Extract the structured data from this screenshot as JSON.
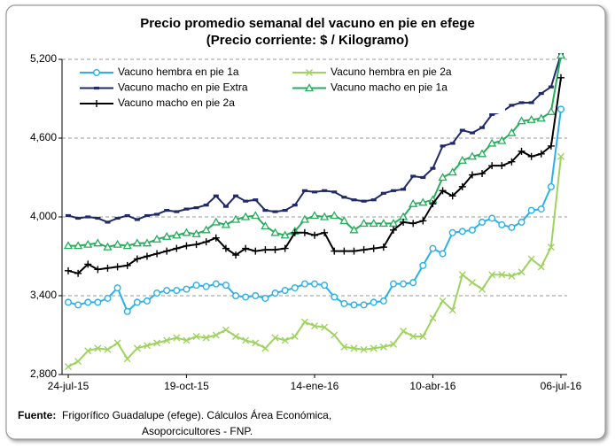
{
  "chart_data": {
    "type": "line",
    "title": "Precio promedio semanal del vacuno en pie en efege",
    "subtitle": "(Precio corriente: $ / Kilogramo)",
    "categories": [
      "24-jul-15",
      null,
      null,
      null,
      null,
      null,
      null,
      null,
      null,
      null,
      null,
      null,
      "19-oct-15",
      null,
      null,
      null,
      null,
      null,
      null,
      null,
      null,
      null,
      null,
      null,
      null,
      "14-ene-16",
      null,
      null,
      null,
      null,
      null,
      null,
      null,
      null,
      null,
      null,
      null,
      "10-abr-16",
      null,
      null,
      null,
      null,
      null,
      null,
      null,
      null,
      null,
      null,
      null,
      null,
      "06-jul-16"
    ],
    "series": [
      {
        "name": "Vacuno hembra en pie 1a",
        "color": "#2bb0e8",
        "marker": "circle",
        "values": [
          3350,
          3330,
          3350,
          3350,
          3380,
          3460,
          3280,
          3350,
          3360,
          3420,
          3440,
          3440,
          3450,
          3480,
          3470,
          3490,
          3480,
          3400,
          3390,
          3400,
          3380,
          3420,
          3440,
          3460,
          3490,
          3490,
          3480,
          3390,
          3340,
          3330,
          3330,
          3350,
          3360,
          3490,
          3490,
          3500,
          3630,
          3760,
          3720,
          3880,
          3890,
          3900,
          3960,
          3990,
          3940,
          3920,
          3960,
          4050,
          4060,
          4230,
          4820
        ]
      },
      {
        "name": "Vacuno hembra en pie 2a",
        "color": "#9ed35f",
        "marker": "x",
        "values": [
          2860,
          2900,
          2980,
          3000,
          2990,
          3040,
          2920,
          3000,
          3020,
          3040,
          3060,
          3080,
          3060,
          3090,
          3080,
          3100,
          3140,
          3090,
          3060,
          3040,
          3000,
          3080,
          3060,
          3090,
          3200,
          3170,
          3160,
          3100,
          3010,
          3000,
          2990,
          3000,
          3010,
          3030,
          3130,
          3090,
          3090,
          3230,
          3360,
          3290,
          3560,
          3500,
          3450,
          3560,
          3560,
          3550,
          3580,
          3680,
          3620,
          3770,
          4460
        ]
      },
      {
        "name": "Vacuno macho en pie Extra",
        "color": "#1f2a66",
        "marker": "dash",
        "values": [
          4010,
          3990,
          4000,
          3990,
          3960,
          3990,
          4010,
          3980,
          4010,
          4020,
          4050,
          4040,
          4060,
          4070,
          4090,
          4160,
          4080,
          4160,
          4120,
          4130,
          4050,
          4040,
          4050,
          4090,
          4200,
          4190,
          4200,
          4190,
          4150,
          4130,
          4120,
          4130,
          4180,
          4200,
          4210,
          4310,
          4300,
          4370,
          4540,
          4560,
          4660,
          4640,
          4680,
          4780,
          4800,
          4850,
          4870,
          4870,
          4940,
          4990,
          5240
        ]
      },
      {
        "name": "Vacuno macho en pie 1a",
        "color": "#26ad5c",
        "marker": "triangle",
        "values": [
          3780,
          3780,
          3790,
          3800,
          3770,
          3790,
          3780,
          3800,
          3800,
          3830,
          3850,
          3860,
          3880,
          3870,
          3900,
          3960,
          3940,
          3980,
          4000,
          4010,
          3930,
          3880,
          3860,
          3890,
          3980,
          4010,
          4000,
          4010,
          3970,
          3900,
          3950,
          3950,
          3950,
          3950,
          4000,
          4100,
          4110,
          4130,
          4300,
          4340,
          4430,
          4460,
          4480,
          4560,
          4580,
          4640,
          4730,
          4740,
          4750,
          4800,
          5230
        ]
      },
      {
        "name": "Vacuno macho en pie 2a",
        "color": "#000000",
        "marker": "plus",
        "values": [
          3590,
          3570,
          3640,
          3600,
          3610,
          3620,
          3630,
          3680,
          3700,
          3720,
          3740,
          3760,
          3780,
          3790,
          3810,
          3840,
          3760,
          3710,
          3760,
          3740,
          3750,
          3750,
          3760,
          3880,
          3880,
          3860,
          3880,
          3740,
          3740,
          3740,
          3750,
          3760,
          3770,
          3900,
          3960,
          3950,
          3970,
          4100,
          4200,
          4160,
          4230,
          4320,
          4330,
          4390,
          4390,
          4420,
          4500,
          4460,
          4480,
          4540,
          5060
        ]
      }
    ],
    "ylim": [
      2800,
      5200
    ],
    "yticks": [
      {
        "value": 2800,
        "label": "2,800"
      },
      {
        "value": 3400,
        "label": "3,400"
      },
      {
        "value": 4000,
        "label": "4,000"
      },
      {
        "value": 4600,
        "label": "4,600"
      },
      {
        "value": 5200,
        "label": "5,200"
      }
    ],
    "grid": true,
    "legend": "top-left",
    "source_label": "Fuente:",
    "source_lines": [
      "Frigorífico Guadalupe (efege). Cálculos Área Económica,",
      "Asoporcicultores  - FNP."
    ]
  }
}
